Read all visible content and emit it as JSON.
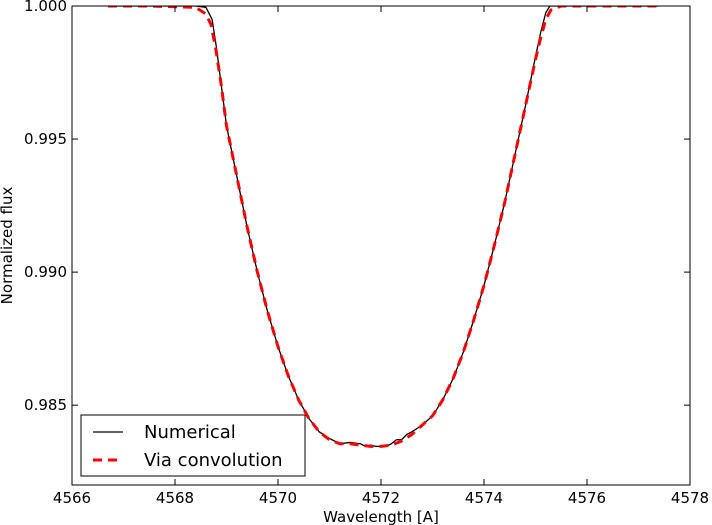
{
  "chart_data": {
    "type": "line",
    "title": "",
    "xlabel": "Wavelength [A]",
    "ylabel": "Normalized flux",
    "xlim": [
      4566,
      4578
    ],
    "ylim": [
      0.982,
      1.0
    ],
    "xticks": [
      4566,
      4568,
      4570,
      4572,
      4574,
      4576,
      4578
    ],
    "xtick_labels": [
      "4566",
      "4568",
      "4570",
      "4572",
      "4574",
      "4576",
      "4578"
    ],
    "yticks": [
      0.985,
      0.99,
      0.995,
      1.0
    ],
    "ytick_labels": [
      "0.985",
      "0.990",
      "0.995",
      "1.000"
    ],
    "grid": false,
    "legend_position": "lower-left",
    "series": [
      {
        "name": "Numerical",
        "color": "#000000",
        "style": "solid",
        "x": [
          4566.7,
          4567.5,
          4568.4,
          4568.6,
          4568.72,
          4568.8,
          4568.9,
          4569.0,
          4569.2,
          4569.4,
          4569.6,
          4569.8,
          4570.0,
          4570.2,
          4570.4,
          4570.6,
          4570.8,
          4571.0,
          4571.2,
          4571.4,
          4571.6,
          4571.7,
          4571.8,
          4571.9,
          4572.0,
          4572.1,
          4572.2,
          4572.3,
          4572.4,
          4572.5,
          4572.6,
          4572.8,
          4573.0,
          4573.2,
          4573.4,
          4573.6,
          4573.8,
          4574.0,
          4574.2,
          4574.4,
          4574.6,
          4574.8,
          4575.0,
          4575.1,
          4575.2,
          4575.28,
          4575.4,
          4575.6,
          4576.5,
          4577.4
        ],
        "y": [
          1.0,
          1.0,
          1.0,
          0.99995,
          0.9995,
          0.9985,
          0.997,
          0.9955,
          0.9936,
          0.9917,
          0.99,
          0.9885,
          0.9872,
          0.9861,
          0.9852,
          0.9845,
          0.984,
          0.98375,
          0.98355,
          0.9836,
          0.98355,
          0.98345,
          0.9835,
          0.98345,
          0.98345,
          0.98345,
          0.98355,
          0.9837,
          0.9837,
          0.9839,
          0.984,
          0.98425,
          0.9846,
          0.9852,
          0.986,
          0.987,
          0.9882,
          0.9895,
          0.991,
          0.9926,
          0.9944,
          0.9962,
          0.9981,
          0.999,
          0.99975,
          1.0,
          1.0,
          1.0,
          1.0,
          1.0
        ]
      },
      {
        "name": "Via convolution",
        "color": "#ff0000",
        "style": "dashed",
        "x": [
          4566.7,
          4567.5,
          4568.4,
          4568.6,
          4568.7,
          4568.8,
          4568.9,
          4569.0,
          4569.2,
          4569.4,
          4569.6,
          4569.8,
          4570.0,
          4570.2,
          4570.4,
          4570.6,
          4570.8,
          4571.0,
          4571.2,
          4571.4,
          4571.6,
          4571.8,
          4572.0,
          4572.2,
          4572.4,
          4572.6,
          4572.8,
          4573.0,
          4573.2,
          4573.4,
          4573.6,
          4573.8,
          4574.0,
          4574.2,
          4574.4,
          4574.6,
          4574.8,
          4575.0,
          4575.1,
          4575.2,
          4575.3,
          4575.5,
          4576.5,
          4577.4
        ],
        "y": [
          1.0,
          1.0,
          0.99995,
          0.9997,
          0.9993,
          0.9983,
          0.997,
          0.9955,
          0.9936,
          0.9917,
          0.99,
          0.9885,
          0.9872,
          0.9861,
          0.9852,
          0.9845,
          0.984,
          0.9837,
          0.98355,
          0.98355,
          0.9835,
          0.98345,
          0.98345,
          0.9835,
          0.98365,
          0.9839,
          0.98425,
          0.9846,
          0.9852,
          0.986,
          0.987,
          0.9882,
          0.9895,
          0.991,
          0.9926,
          0.9944,
          0.9962,
          0.998,
          0.9988,
          0.9995,
          0.99985,
          1.0,
          1.0,
          1.0
        ]
      }
    ]
  }
}
